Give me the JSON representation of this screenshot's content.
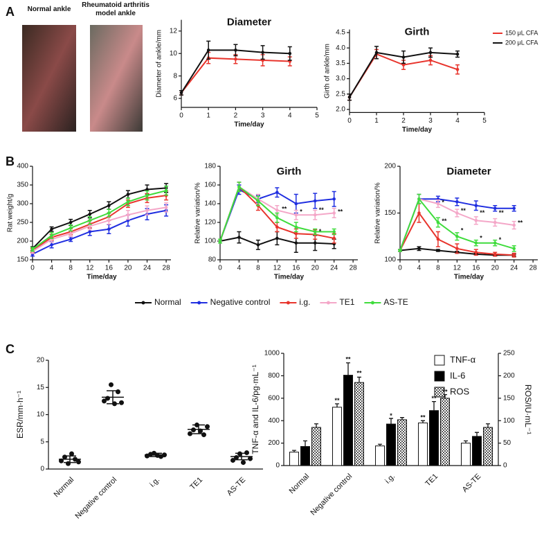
{
  "panel_labels": [
    "A",
    "B",
    "C"
  ],
  "photos": [
    "Normal ankle",
    "Rheumatoid arthritis model ankle"
  ],
  "chart_data": [
    {
      "type": "line",
      "title": "Diameter",
      "xlabel": "Time/day",
      "ylabel": "Diameter of ankle/mm",
      "x": [
        0,
        1,
        2,
        3,
        4
      ],
      "xlim": [
        0,
        5
      ],
      "xticks": [
        0,
        1,
        2,
        3,
        4,
        5
      ],
      "ylim": [
        5.2,
        13
      ],
      "yticks": [
        6,
        8,
        10,
        12
      ],
      "series": [
        {
          "color": "#e8342c",
          "values": [
            6.5,
            9.6,
            9.5,
            9.4,
            9.3
          ],
          "errors": [
            0.2,
            0.5,
            0.4,
            0.5,
            0.4
          ]
        },
        {
          "color": "#111111",
          "values": [
            6.5,
            10.3,
            10.3,
            10.1,
            10.0
          ],
          "errors": [
            0.2,
            0.8,
            0.5,
            0.6,
            0.6
          ]
        }
      ]
    },
    {
      "type": "line",
      "title": "Girth",
      "xlabel": "Time/day",
      "ylabel": "Girth of ankle/mm",
      "x": [
        0,
        1,
        2,
        3,
        4
      ],
      "xlim": [
        0,
        5
      ],
      "xticks": [
        0,
        1,
        2,
        3,
        4,
        5
      ],
      "ylim": [
        1.9,
        4.6
      ],
      "yticks": [
        {
          "value": 2,
          "label": "2.0"
        },
        2.5,
        {
          "value": 3,
          "label": "3.0"
        },
        3.5,
        {
          "value": 4,
          "label": "4.0"
        },
        4.5
      ],
      "legend": "right",
      "series": [
        {
          "name": "150 μL CFA",
          "color": "#e8342c",
          "values": [
            2.4,
            3.8,
            3.45,
            3.6,
            3.3
          ],
          "errors": [
            0.1,
            0.15,
            0.15,
            0.15,
            0.15
          ]
        },
        {
          "name": "200 μL CFA",
          "color": "#111111",
          "values": [
            2.4,
            3.85,
            3.7,
            3.85,
            3.8
          ],
          "errors": [
            0.1,
            0.2,
            0.2,
            0.15,
            0.1
          ]
        }
      ]
    },
    {
      "type": "line",
      "xlabel": "Time/day",
      "ylabel": "Rat weight/g",
      "x": [
        0,
        4,
        8,
        12,
        16,
        20,
        24,
        28
      ],
      "xlim": [
        0,
        29
      ],
      "xticks": [
        0,
        4,
        8,
        12,
        16,
        20,
        24,
        28
      ],
      "ylim": [
        150,
        400
      ],
      "yticks": [
        150,
        200,
        250,
        300,
        350,
        400
      ],
      "legend": "bottom",
      "series": [
        {
          "name": "Normal",
          "color": "#111111",
          "values": [
            180,
            232,
            250,
            272,
            295,
            325,
            338,
            342
          ],
          "errors": [
            5,
            6,
            8,
            10,
            10,
            10,
            12,
            12
          ]
        },
        {
          "name": "Negative control",
          "color": "#1f2ee0",
          "values": [
            165,
            190,
            205,
            225,
            232,
            255,
            272,
            282
          ],
          "errors": [
            5,
            8,
            6,
            10,
            12,
            15,
            15,
            15
          ]
        },
        {
          "name": "i.g.",
          "color": "#e8342c",
          "values": [
            175,
            210,
            225,
            245,
            265,
            300,
            315,
            322
          ],
          "errors": [
            5,
            8,
            8,
            10,
            10,
            10,
            12,
            12
          ]
        },
        {
          "name": "TE1",
          "color": "#f4a7c8",
          "values": [
            172,
            205,
            220,
            240,
            255,
            270,
            282,
            290
          ],
          "errors": [
            5,
            8,
            8,
            10,
            10,
            12,
            12,
            12
          ]
        },
        {
          "name": "AS-TE",
          "color": "#3fdc3c",
          "values": [
            178,
            215,
            235,
            255,
            275,
            305,
            322,
            335
          ],
          "errors": [
            5,
            8,
            8,
            10,
            10,
            10,
            12,
            12
          ]
        }
      ]
    },
    {
      "type": "line",
      "title": "Girth",
      "xlabel": "Time/day",
      "ylabel": "Relative variation/%",
      "x": [
        0,
        4,
        8,
        12,
        16,
        20,
        24
      ],
      "xlim": [
        0,
        29
      ],
      "xticks": [
        0,
        4,
        8,
        12,
        16,
        20,
        24,
        28
      ],
      "ylim": [
        80,
        180
      ],
      "yticks": [
        80,
        100,
        120,
        140,
        160,
        180
      ],
      "series": [
        {
          "color": "#111111",
          "values": [
            100,
            104,
            96,
            103,
            98,
            98,
            97
          ],
          "errors": [
            2,
            6,
            5,
            7,
            10,
            8,
            5
          ]
        },
        {
          "color": "#1f2ee0",
          "values": [
            100,
            155,
            145,
            152,
            140,
            143,
            145
          ],
          "errors": [
            2,
            5,
            4,
            5,
            10,
            8,
            8
          ]
        },
        {
          "color": "#e8342c",
          "values": [
            100,
            158,
            138,
            115,
            108,
            107,
            103
          ],
          "errors": [
            2,
            5,
            5,
            5,
            5,
            5,
            5
          ]
        },
        {
          "color": "#f4a7c8",
          "values": [
            100,
            158,
            145,
            133,
            128,
            128,
            130
          ],
          "errors": [
            2,
            5,
            5,
            5,
            5,
            5,
            5
          ]
        },
        {
          "color": "#3fdc3c",
          "values": [
            100,
            158,
            143,
            125,
            115,
            110,
            110
          ],
          "errors": [
            2,
            5,
            5,
            5,
            5,
            3,
            3
          ]
        }
      ],
      "annotations": [
        {
          "text": "**",
          "x": 13,
          "y": 134
        },
        {
          "text": "*",
          "x": 16.8,
          "y": 131
        },
        {
          "text": "**",
          "x": 20.8,
          "y": 133
        },
        {
          "text": "**",
          "x": 24.8,
          "y": 131
        },
        {
          "text": "*",
          "x": 20.8,
          "y": 110
        }
      ]
    },
    {
      "type": "line",
      "title": "Diameter",
      "xlabel": "Time/day",
      "ylabel": "Relative variation/%",
      "x": [
        0,
        4,
        8,
        12,
        16,
        20,
        24
      ],
      "xlim": [
        0,
        29
      ],
      "xticks": [
        0,
        4,
        8,
        12,
        16,
        20,
        24,
        28
      ],
      "ylim": [
        100,
        200
      ],
      "yticks": [
        100,
        150,
        200
      ],
      "series": [
        {
          "color": "#111111",
          "values": [
            110,
            112,
            110,
            108,
            106,
            105,
            105
          ],
          "errors": [
            1,
            2,
            1,
            1,
            1,
            1,
            1
          ]
        },
        {
          "color": "#1f2ee0",
          "values": [
            110,
            165,
            165,
            162,
            158,
            155,
            155
          ],
          "errors": [
            1,
            5,
            3,
            4,
            5,
            3,
            3
          ]
        },
        {
          "color": "#e8342c",
          "values": [
            110,
            150,
            122,
            112,
            108,
            106,
            105
          ],
          "errors": [
            1,
            10,
            8,
            5,
            3,
            2,
            2
          ]
        },
        {
          "color": "#f4a7c8",
          "values": [
            110,
            165,
            160,
            150,
            142,
            140,
            137
          ],
          "errors": [
            1,
            5,
            4,
            4,
            4,
            4,
            4
          ]
        },
        {
          "color": "#3fdc3c",
          "values": [
            110,
            165,
            140,
            125,
            118,
            118,
            112
          ],
          "errors": [
            1,
            5,
            5,
            4,
            3,
            3,
            3
          ]
        }
      ],
      "annotations": [
        {
          "text": "*",
          "x": 8.8,
          "y": 161
        },
        {
          "text": "**",
          "x": 12.8,
          "y": 152
        },
        {
          "text": "**",
          "x": 16.8,
          "y": 150
        },
        {
          "text": "**",
          "x": 20.8,
          "y": 150
        },
        {
          "text": "**",
          "x": 24.8,
          "y": 139
        },
        {
          "text": "**",
          "x": 8.8,
          "y": 141
        },
        {
          "text": "*",
          "x": 12.8,
          "y": 131
        },
        {
          "text": "*",
          "x": 16.8,
          "y": 123
        },
        {
          "text": "*",
          "x": 20.8,
          "y": 121
        }
      ]
    },
    {
      "type": "dot",
      "ylabel": "ESR/mm·h⁻¹",
      "categories": [
        "Normal",
        "Negative control",
        "i.g.",
        "TE1",
        "AS-TE"
      ],
      "ylim": [
        0,
        20
      ],
      "yticks": [
        0,
        5,
        10,
        15,
        20
      ],
      "color": "#111111",
      "points": [
        [
          1.5,
          2.2,
          1.0,
          2.8,
          1.8,
          1.3
        ],
        [
          12.5,
          13.0,
          15.5,
          12.0,
          14.2,
          12.2
        ],
        [
          2.4,
          2.7,
          2.9,
          2.5,
          2.3,
          2.6
        ],
        [
          6.5,
          7.2,
          8.1,
          7.0,
          6.3,
          7.8
        ],
        [
          1.6,
          2.1,
          2.8,
          1.2,
          3.0,
          1.9
        ]
      ],
      "means": [
        1.8,
        13.2,
        2.6,
        7.3,
        2.3
      ],
      "sds": [
        0.6,
        1.2,
        0.3,
        0.8,
        0.6
      ]
    },
    {
      "type": "bar",
      "ylabel": "TNF-α and IL-6/pg·mL⁻¹",
      "y2label": "ROS/IU·mL⁻¹",
      "categories": [
        "Normal",
        "Negative control",
        "i.g.",
        "TE1",
        "AS-TE"
      ],
      "ylim": [
        0,
        1000
      ],
      "yticks": [
        0,
        200,
        400,
        600,
        800,
        1000
      ],
      "y2lim": [
        0,
        250
      ],
      "y2ticks": [
        0,
        50,
        100,
        150,
        200,
        250
      ],
      "legend": "top-right",
      "series": [
        {
          "name": "TNF-α",
          "color": "#ffffff",
          "values": [
            120,
            520,
            175,
            380,
            200
          ],
          "errors": [
            15,
            30,
            15,
            20,
            20
          ]
        },
        {
          "name": "IL-6",
          "color": "#000000",
          "values": [
            170,
            805,
            370,
            490,
            260
          ],
          "errors": [
            50,
            110,
            50,
            80,
            35
          ]
        },
        {
          "name": "ROS",
          "color": "#888888",
          "hatch": true,
          "axis": "y2",
          "values": [
            85,
            185,
            102,
            150,
            85
          ],
          "errors": [
            8,
            12,
            5,
            8,
            8
          ]
        }
      ],
      "annotations": [
        {
          "text": "**",
          "category": "Negative control",
          "series": "TNF-α",
          "y": 575
        },
        {
          "text": "**",
          "category": "Negative control",
          "series": "IL-6",
          "y": 945
        },
        {
          "text": "**",
          "category": "Negative control",
          "series": "ROS",
          "y": 820
        },
        {
          "text": "*",
          "category": "i.g.",
          "series": "IL-6",
          "y": 440
        },
        {
          "text": "**",
          "category": "TE1",
          "series": "TNF-α",
          "y": 425
        },
        {
          "text": "**",
          "category": "TE1",
          "series": "IL-6",
          "y": 595
        },
        {
          "text": "**",
          "category": "TE1",
          "series": "ROS",
          "y": 655
        }
      ]
    }
  ]
}
